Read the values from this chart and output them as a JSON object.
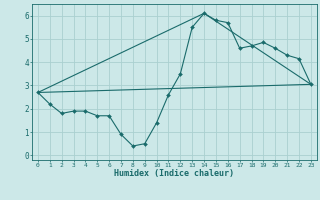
{
  "bg_color": "#cce8e8",
  "line_color": "#1a6b6b",
  "grid_color": "#aad0d0",
  "xlabel": "Humidex (Indice chaleur)",
  "ylim": [
    -0.2,
    6.5
  ],
  "xlim": [
    -0.5,
    23.5
  ],
  "yticks": [
    0,
    1,
    2,
    3,
    4,
    5,
    6
  ],
  "xticks": [
    0,
    1,
    2,
    3,
    4,
    5,
    6,
    7,
    8,
    9,
    10,
    11,
    12,
    13,
    14,
    15,
    16,
    17,
    18,
    19,
    20,
    21,
    22,
    23
  ],
  "line1_x": [
    0,
    1,
    2,
    3,
    4,
    5,
    6,
    7,
    8,
    9,
    10,
    11,
    12,
    13,
    14,
    15,
    16,
    17,
    18,
    19,
    20,
    21,
    22,
    23
  ],
  "line1_y": [
    2.7,
    2.2,
    1.8,
    1.9,
    1.9,
    1.7,
    1.7,
    0.9,
    0.4,
    0.5,
    1.4,
    2.6,
    3.5,
    5.5,
    6.1,
    5.8,
    5.7,
    4.6,
    4.7,
    4.85,
    4.6,
    4.3,
    4.15,
    3.05
  ],
  "line2_x": [
    0,
    23
  ],
  "line2_y": [
    2.7,
    3.05
  ],
  "line3_x": [
    0,
    14,
    23
  ],
  "line3_y": [
    2.7,
    6.1,
    3.05
  ],
  "marker_size": 2.0,
  "line_width": 0.8
}
